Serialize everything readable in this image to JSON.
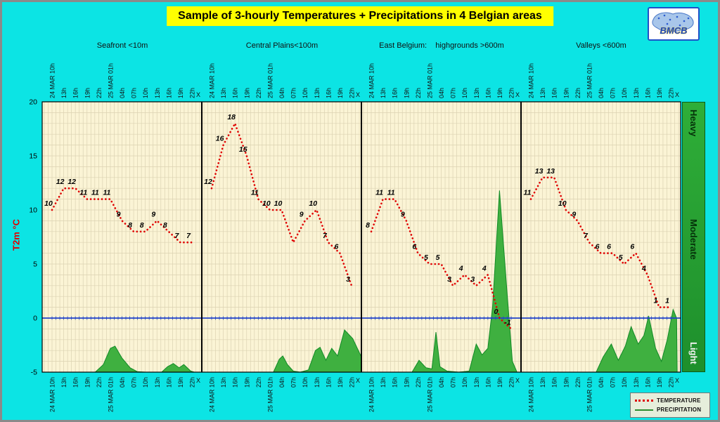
{
  "title": "Sample of 3-hourly Temperatures + Precipitations in 4 Belgian areas",
  "logo": {
    "text": "BMCB"
  },
  "ylabel": "T2m °C",
  "legend": {
    "temperature": "TEMPERATURE",
    "precipitation": "PRECIPITATION"
  },
  "right_bar": {
    "labels": [
      "Heavy",
      "Moderate",
      "Light"
    ]
  },
  "colors": {
    "background": "#0ce4e4",
    "title_bg": "#ffff00",
    "plot_bg": "#fbf4d5",
    "grid": "#dbd2b2",
    "temperature": "#e00000",
    "precipitation": "#3fb040",
    "precipitation_edge": "#128a26",
    "zero_line": "#2143c8",
    "intensity_bar": "#2aa52f"
  },
  "chart_data": {
    "type": "line",
    "secondary_type": "area",
    "categories": [
      "24 MAR 10h",
      "13h",
      "16h",
      "19h",
      "22h",
      "25 MAR 01h",
      "04h",
      "07h",
      "10h",
      "13h",
      "16h",
      "19h",
      "22h"
    ],
    "end_label": "X",
    "ylim": [
      -5,
      20
    ],
    "yticks": [
      -5,
      0,
      5,
      10,
      15,
      20
    ],
    "xlabel": "",
    "ylabel": "T2m °C",
    "panels": [
      {
        "title": "Seafront <10m",
        "temperature": [
          10,
          12,
          12,
          11,
          11,
          11,
          9,
          8,
          8,
          9,
          8,
          7,
          7
        ],
        "temp_labels": [
          "10",
          "12",
          "12",
          "11",
          "11",
          "11",
          "9",
          "8",
          "8",
          "9",
          "8",
          "7",
          "7"
        ],
        "precipitation": [
          {
            "x": 3.7,
            "v": 0
          },
          {
            "x": 4.4,
            "v": 0.7
          },
          {
            "x": 5.0,
            "v": 2.2
          },
          {
            "x": 5.4,
            "v": 2.4
          },
          {
            "x": 6.0,
            "v": 1.3
          },
          {
            "x": 6.7,
            "v": 0.4
          },
          {
            "x": 7.3,
            "v": 0.05
          },
          {
            "x": 8.0,
            "v": 0
          },
          {
            "x": 9.4,
            "v": 0
          },
          {
            "x": 9.9,
            "v": 0.5
          },
          {
            "x": 10.4,
            "v": 0.8
          },
          {
            "x": 10.9,
            "v": 0.4
          },
          {
            "x": 11.3,
            "v": 0.7
          },
          {
            "x": 11.9,
            "v": 0.1
          },
          {
            "x": 12.2,
            "v": 0
          }
        ]
      },
      {
        "title": "Central Plains<100m",
        "temperature": [
          12,
          16,
          18,
          15,
          11,
          10,
          10,
          7,
          9,
          10,
          7,
          6,
          3
        ],
        "temp_labels": [
          "12",
          "16",
          "18",
          "15",
          "11",
          "10",
          "10",
          "",
          "9",
          "10",
          "7",
          "6",
          "3"
        ],
        "precipitation": [
          {
            "x": 5.3,
            "v": 0
          },
          {
            "x": 5.8,
            "v": 1.2
          },
          {
            "x": 6.1,
            "v": 1.5
          },
          {
            "x": 6.5,
            "v": 0.7
          },
          {
            "x": 7.0,
            "v": 0.1
          },
          {
            "x": 7.6,
            "v": 0
          },
          {
            "x": 8.3,
            "v": 0.2
          },
          {
            "x": 8.9,
            "v": 2.0
          },
          {
            "x": 9.3,
            "v": 2.3
          },
          {
            "x": 9.8,
            "v": 1.1
          },
          {
            "x": 10.3,
            "v": 2.2
          },
          {
            "x": 10.8,
            "v": 1.5
          },
          {
            "x": 11.4,
            "v": 3.9
          },
          {
            "x": 12.1,
            "v": 3.1
          },
          {
            "x": 12.8,
            "v": 1.5
          },
          {
            "x": 13.0,
            "v": 0
          }
        ]
      },
      {
        "title": "East Belgium:    highgrounds >600m",
        "temperature": [
          8,
          11,
          11,
          9,
          6,
          5,
          5,
          3,
          4,
          3,
          4,
          0,
          -1
        ],
        "temp_labels": [
          "8",
          "11",
          "11",
          "9",
          "6",
          "5",
          "5",
          "3",
          "4",
          "3",
          "4",
          "0",
          "-1"
        ],
        "precipitation": [
          {
            "x": 3.5,
            "v": 0
          },
          {
            "x": 4.1,
            "v": 1.1
          },
          {
            "x": 4.7,
            "v": 0.4
          },
          {
            "x": 5.2,
            "v": 0.3
          },
          {
            "x": 5.55,
            "v": 3.7
          },
          {
            "x": 5.9,
            "v": 0.5
          },
          {
            "x": 6.5,
            "v": 0.1
          },
          {
            "x": 7.5,
            "v": 0
          },
          {
            "x": 8.4,
            "v": 0.1
          },
          {
            "x": 9.0,
            "v": 2.6
          },
          {
            "x": 9.5,
            "v": 1.6
          },
          {
            "x": 10.0,
            "v": 2.2
          },
          {
            "x": 10.4,
            "v": 6.0
          },
          {
            "x": 11.0,
            "v": 16.8
          },
          {
            "x": 11.6,
            "v": 8.0
          },
          {
            "x": 12.1,
            "v": 1.0
          },
          {
            "x": 12.5,
            "v": 0
          }
        ]
      },
      {
        "title": "Valleys <600m",
        "temperature": [
          11,
          13,
          13,
          10,
          9,
          7,
          6,
          6,
          5,
          6,
          4,
          1,
          1
        ],
        "temp_labels": [
          "11",
          "13",
          "13",
          "10",
          "9",
          "7",
          "6",
          "6",
          "5",
          "6",
          "4",
          "1",
          "1"
        ],
        "precipitation": [
          {
            "x": 5.6,
            "v": 0
          },
          {
            "x": 6.2,
            "v": 1.4
          },
          {
            "x": 6.9,
            "v": 2.6
          },
          {
            "x": 7.5,
            "v": 1.1
          },
          {
            "x": 8.1,
            "v": 2.4
          },
          {
            "x": 8.6,
            "v": 4.2
          },
          {
            "x": 9.2,
            "v": 2.6
          },
          {
            "x": 9.7,
            "v": 3.4
          },
          {
            "x": 10.1,
            "v": 5.2
          },
          {
            "x": 10.7,
            "v": 2.2
          },
          {
            "x": 11.2,
            "v": 1.0
          },
          {
            "x": 11.7,
            "v": 3.0
          },
          {
            "x": 12.2,
            "v": 5.8
          },
          {
            "x": 12.5,
            "v": 5.0
          },
          {
            "x": 12.55,
            "v": 0
          }
        ]
      }
    ]
  }
}
